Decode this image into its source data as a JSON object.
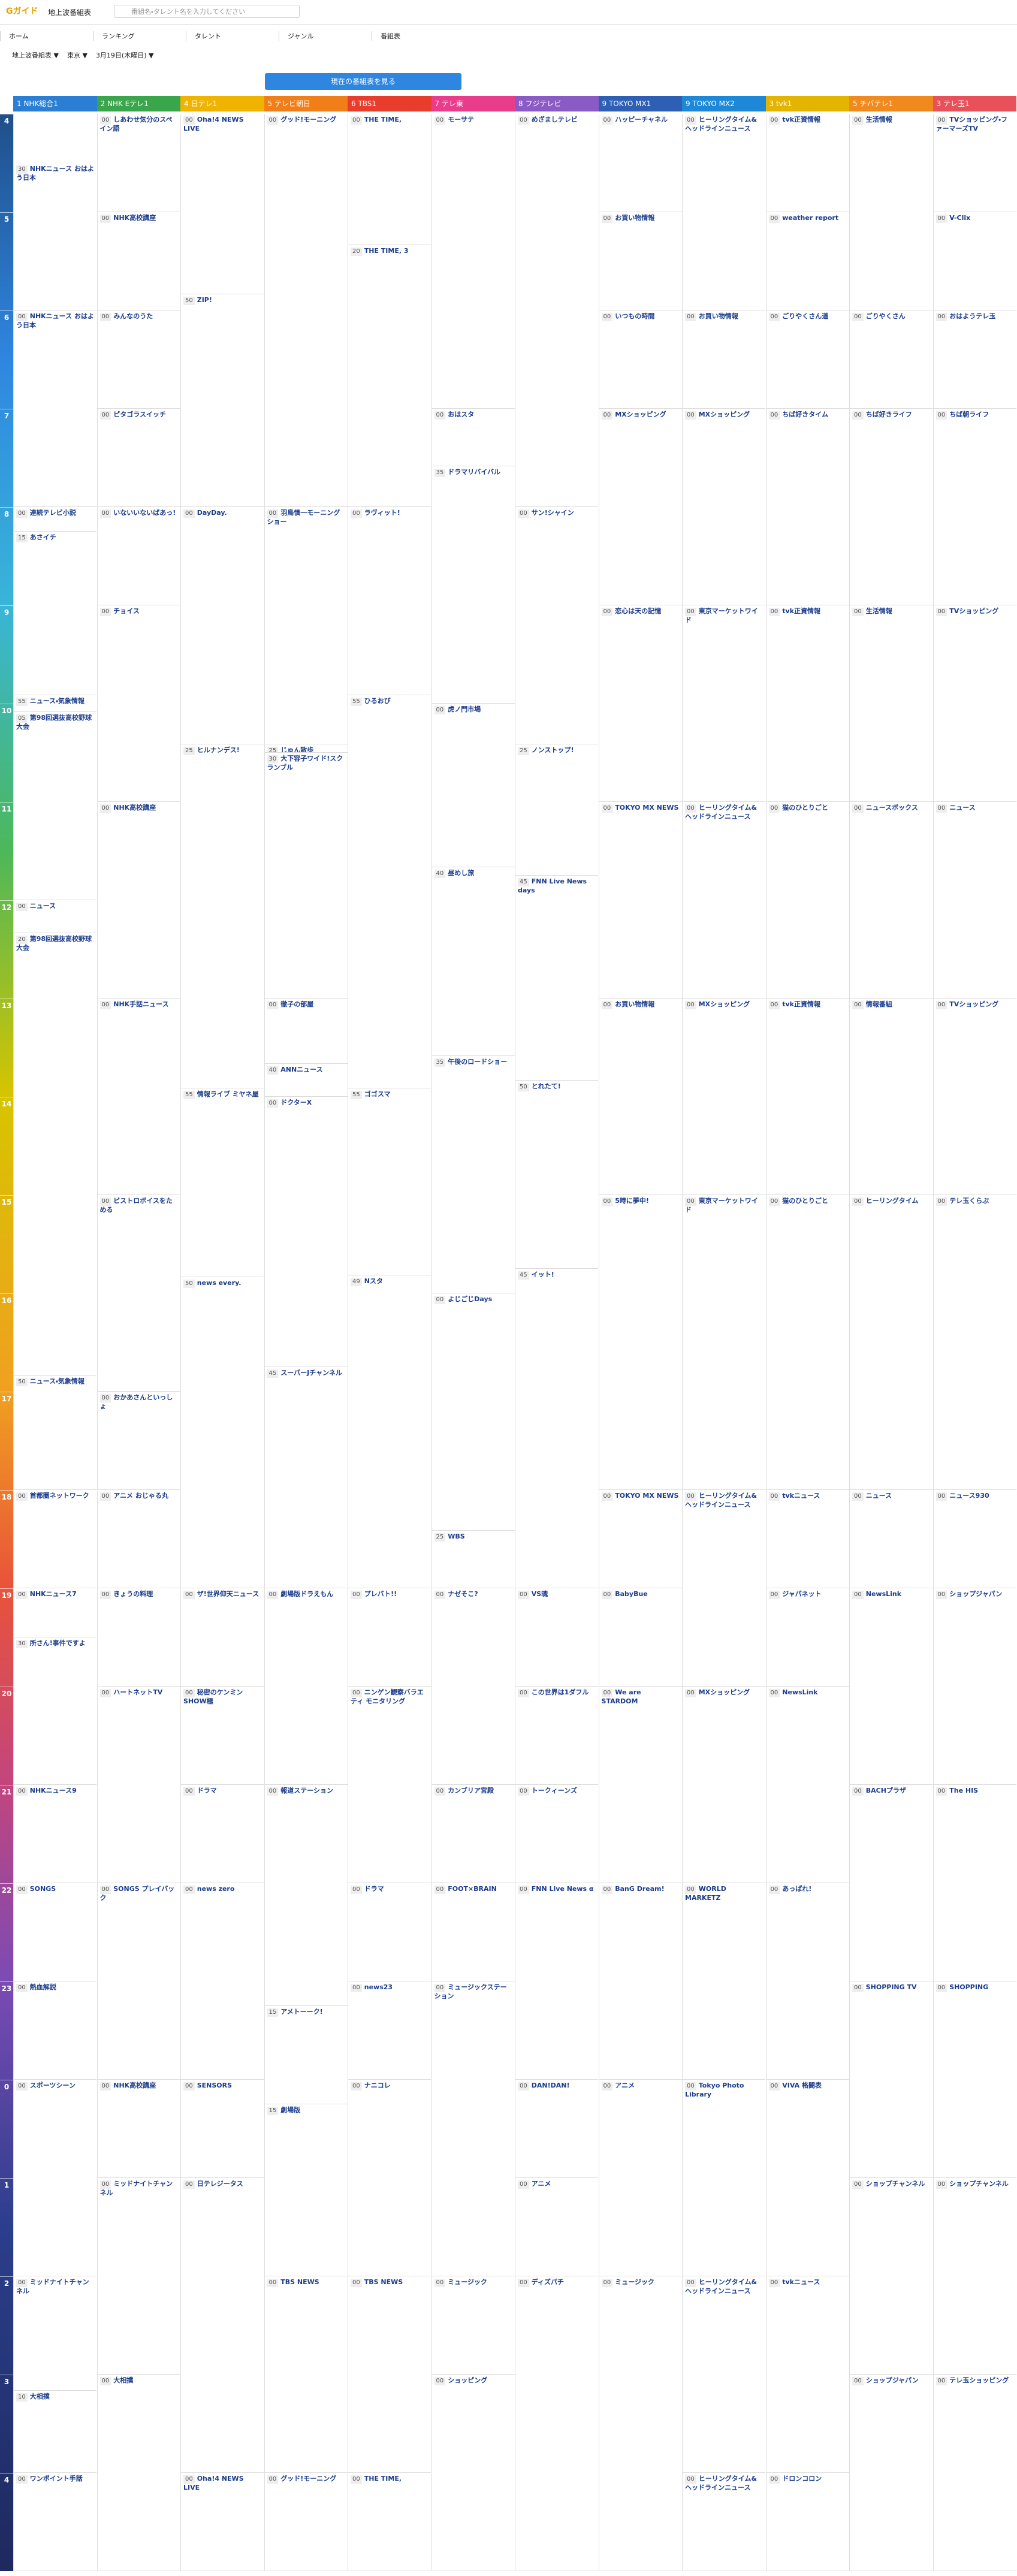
{
  "header": {
    "logo": "Gガイド",
    "site_name": "地上波番組表",
    "search_placeholder": "番組名・タレント名を入力してください"
  },
  "nav": [
    "ホーム",
    "ランキング",
    "タレント",
    "ジャンル",
    "番組表"
  ],
  "selectors": [
    "地上波番組表 ▼",
    "東京 ▼",
    "3月19日(木曜日) ▼"
  ],
  "button": "現在の番組表を見る",
  "hours": [
    4,
    5,
    6,
    7,
    8,
    9,
    10,
    11,
    12,
    13,
    14,
    15,
    16,
    17,
    18,
    19,
    20,
    21,
    22,
    23,
    {
      "value": 24,
      "label": "0"
    },
    {
      "value": 25,
      "label": "1"
    },
    {
      "value": 26,
      "label": "2"
    },
    {
      "value": 27,
      "label": "3"
    },
    {
      "value": 28,
      "label": "4"
    }
  ],
  "channels": [
    {
      "name": "1 NHK総合1",
      "color": "#2a7fd4",
      "programs": [
        {
          "hour": 4,
          "minute": "30",
          "title": "NHKニュース おはよう日本"
        },
        {
          "hour": 6,
          "minute": "00",
          "title": "NHKニュース おはよう日本"
        },
        {
          "hour": 8,
          "minute": "00",
          "title": "連続テレビ小説"
        },
        {
          "hour": 8,
          "minute": "15",
          "title": "あさイチ"
        },
        {
          "hour": 9,
          "minute": "55",
          "title": "ニュース・気象情報"
        },
        {
          "hour": 10,
          "minute": "05",
          "title": "第98回選抜高校野球大会"
        },
        {
          "hour": 12,
          "minute": "00",
          "title": "ニュース"
        },
        {
          "hour": 12,
          "minute": "20",
          "title": "第98回選抜高校野球大会"
        },
        {
          "hour": 16,
          "minute": "50",
          "title": "ニュース・気象情報"
        },
        {
          "hour": 18,
          "minute": "00",
          "title": "首都圏ネットワーク"
        },
        {
          "hour": 19,
          "minute": "00",
          "title": "NHKニュース7"
        },
        {
          "hour": 19,
          "minute": "30",
          "title": "所さん!事件ですよ"
        },
        {
          "hour": 21,
          "minute": "00",
          "title": "NHKニュース9"
        },
        {
          "hour": 22,
          "minute": "00",
          "title": "SONGS"
        },
        {
          "hour": 23,
          "minute": "00",
          "title": "熱血解説"
        },
        {
          "hour": 24,
          "minute": "00",
          "title": "スポーツシーン"
        },
        {
          "hour": 26,
          "minute": "00",
          "title": "ミッドナイトチャンネル"
        },
        {
          "hour": 27,
          "minute": "10",
          "title": "大相撲"
        },
        {
          "hour": 28,
          "minute": "00",
          "title": "ワンポイント手話"
        }
      ]
    },
    {
      "name": "2 NHK Eテレ1",
      "color": "#3aa64b",
      "programs": [
        {
          "hour": 4,
          "minute": "00",
          "title": "しあわせ気分のスペイン語"
        },
        {
          "hour": 5,
          "minute": "00",
          "title": "NHK高校講座"
        },
        {
          "hour": 6,
          "minute": "00",
          "title": "みんなのうた"
        },
        {
          "hour": 7,
          "minute": "00",
          "title": "ピタゴラスイッチ"
        },
        {
          "hour": 8,
          "minute": "00",
          "title": "いないいないばあっ!"
        },
        {
          "hour": 9,
          "minute": "00",
          "title": "チョイス"
        },
        {
          "hour": 11,
          "minute": "00",
          "title": "NHK高校講座"
        },
        {
          "hour": 13,
          "minute": "00",
          "title": "NHK手話ニュース"
        },
        {
          "hour": 15,
          "minute": "00",
          "title": "ビストロボイスをためる"
        },
        {
          "hour": 17,
          "minute": "00",
          "title": "おかあさんといっしょ"
        },
        {
          "hour": 18,
          "minute": "00",
          "title": "アニメ おじゃる丸"
        },
        {
          "hour": 19,
          "minute": "00",
          "title": "きょうの料理"
        },
        {
          "hour": 20,
          "minute": "00",
          "title": "ハートネットTV"
        },
        {
          "hour": 22,
          "minute": "00",
          "title": "SONGS プレイバック"
        },
        {
          "hour": 24,
          "minute": "00",
          "title": "NHK高校講座"
        },
        {
          "hour": 25,
          "minute": "00",
          "title": "ミッドナイトチャンネル"
        },
        {
          "hour": 27,
          "minute": "00",
          "title": "大相撲"
        }
      ]
    },
    {
      "name": "4 日テレ1",
      "color": "#f0b400",
      "programs": [
        {
          "hour": 4,
          "minute": "00",
          "title": "Oha!4 NEWS LIVE"
        },
        {
          "hour": 5,
          "minute": "50",
          "title": "ZIP!"
        },
        {
          "hour": 8,
          "minute": "00",
          "title": "DayDay."
        },
        {
          "hour": 10,
          "minute": "25",
          "title": "ヒルナンデス!"
        },
        {
          "hour": 13,
          "minute": "55",
          "title": "情報ライブ ミヤネ屋"
        },
        {
          "hour": 15,
          "minute": "50",
          "title": "news every."
        },
        {
          "hour": 19,
          "minute": "00",
          "title": "ザ!世界仰天ニュース"
        },
        {
          "hour": 20,
          "minute": "00",
          "title": "秘密のケンミンSHOW極"
        },
        {
          "hour": 21,
          "minute": "00",
          "title": "ドラマ"
        },
        {
          "hour": 22,
          "minute": "00",
          "title": "news zero"
        },
        {
          "hour": 24,
          "minute": "00",
          "title": "SENSORS"
        },
        {
          "hour": 25,
          "minute": "00",
          "title": "日テレジータス"
        },
        {
          "hour": 28,
          "minute": "00",
          "title": "Oha!4 NEWS LIVE"
        }
      ]
    },
    {
      "name": "5 テレビ朝日",
      "color": "#f07f1a",
      "programs": [
        {
          "hour": 4,
          "minute": "00",
          "title": "グッド!モーニング"
        },
        {
          "hour": 8,
          "minute": "00",
          "title": "羽鳥慎一モーニングショー"
        },
        {
          "hour": 10,
          "minute": "25",
          "title": "じゅん散歩"
        },
        {
          "hour": 10,
          "minute": "30",
          "title": "大下容子ワイド!スクランブル"
        },
        {
          "hour": 13,
          "minute": "00",
          "title": "徹子の部屋"
        },
        {
          "hour": 13,
          "minute": "40",
          "title": "ANNニュース"
        },
        {
          "hour": 14,
          "minute": "00",
          "title": "ドクターX"
        },
        {
          "hour": 16,
          "minute": "45",
          "title": "スーパーJチャンネル"
        },
        {
          "hour": 19,
          "minute": "00",
          "title": "劇場版ドラえもん"
        },
        {
          "hour": 21,
          "minute": "00",
          "title": "報道ステーション"
        },
        {
          "hour": 23,
          "minute": "15",
          "title": "アメトーーク!"
        },
        {
          "hour": 24,
          "minute": "15",
          "title": "劇場版"
        },
        {
          "hour": 26,
          "minute": "00",
          "title": "TBS NEWS"
        },
        {
          "hour": 28,
          "minute": "00",
          "title": "グッド!モーニング"
        }
      ]
    },
    {
      "name": "6 TBS1",
      "color": "#e83c2c",
      "programs": [
        {
          "hour": 4,
          "minute": "00",
          "title": "THE TIME,"
        },
        {
          "hour": 5,
          "minute": "20",
          "title": "THE TIME, 3"
        },
        {
          "hour": 8,
          "minute": "00",
          "title": "ラヴィット!"
        },
        {
          "hour": 9,
          "minute": "55",
          "title": "ひるおび"
        },
        {
          "hour": 13,
          "minute": "55",
          "title": "ゴゴスマ"
        },
        {
          "hour": 15,
          "minute": "49",
          "title": "Nスタ"
        },
        {
          "hour": 19,
          "minute": "00",
          "title": "プレバト!!"
        },
        {
          "hour": 20,
          "minute": "00",
          "title": "ニンゲン観察バラエティ モニタリング"
        },
        {
          "hour": 22,
          "minute": "00",
          "title": "ドラマ"
        },
        {
          "hour": 23,
          "minute": "00",
          "title": "news23"
        },
        {
          "hour": 24,
          "minute": "00",
          "title": "ナニコレ"
        },
        {
          "hour": 26,
          "minute": "00",
          "title": "TBS NEWS"
        },
        {
          "hour": 28,
          "minute": "00",
          "title": "THE TIME,"
        }
      ]
    },
    {
      "name": "7 テレ東",
      "color": "#e93d8c",
      "programs": [
        {
          "hour": 4,
          "minute": "00",
          "title": "モーサテ"
        },
        {
          "hour": 7,
          "minute": "00",
          "title": "おはスタ"
        },
        {
          "hour": 7,
          "minute": "35",
          "title": "ドラマリバイバル"
        },
        {
          "hour": 10,
          "minute": "00",
          "title": "虎ノ門市場"
        },
        {
          "hour": 11,
          "minute": "40",
          "title": "昼めし旅"
        },
        {
          "hour": 13,
          "minute": "35",
          "title": "午後のロードショー"
        },
        {
          "hour": 16,
          "minute": "00",
          "title": "よじごじDays"
        },
        {
          "hour": 18,
          "minute": "25",
          "title": "WBS"
        },
        {
          "hour": 19,
          "minute": "00",
          "title": "ナゼそこ?"
        },
        {
          "hour": 21,
          "minute": "00",
          "title": "カンブリア宮殿"
        },
        {
          "hour": 22,
          "minute": "00",
          "title": "FOOT×BRAIN"
        },
        {
          "hour": 23,
          "minute": "00",
          "title": "ミュージックステーション"
        },
        {
          "hour": 26,
          "minute": "00",
          "title": "ミュージック"
        },
        {
          "hour": 27,
          "minute": "00",
          "title": "ショッピング"
        }
      ]
    },
    {
      "name": "8 フジテレビ",
      "color": "#8a5bc4",
      "programs": [
        {
          "hour": 4,
          "minute": "00",
          "title": "めざましテレビ"
        },
        {
          "hour": 8,
          "minute": "00",
          "title": "サン!シャイン"
        },
        {
          "hour": 10,
          "minute": "25",
          "title": "ノンストップ!"
        },
        {
          "hour": 11,
          "minute": "45",
          "title": "FNN Live News days"
        },
        {
          "hour": 13,
          "minute": "50",
          "title": "とれたて!"
        },
        {
          "hour": 15,
          "minute": "45",
          "title": "イット!"
        },
        {
          "hour": 19,
          "minute": "00",
          "title": "VS魂"
        },
        {
          "hour": 20,
          "minute": "00",
          "title": "この世界は1ダフル"
        },
        {
          "hour": 21,
          "minute": "00",
          "title": "トークィーンズ"
        },
        {
          "hour": 22,
          "minute": "00",
          "title": "FNN Live News α"
        },
        {
          "hour": 24,
          "minute": "00",
          "title": "DAN!DAN!"
        },
        {
          "hour": 25,
          "minute": "00",
          "title": "アニメ"
        },
        {
          "hour": 26,
          "minute": "00",
          "title": "ディズパチ"
        }
      ]
    },
    {
      "name": "9 TOKYO MX1",
      "color": "#2d5fb4",
      "programs": [
        {
          "hour": 4,
          "minute": "00",
          "title": "ハッピーチャネル"
        },
        {
          "hour": 5,
          "minute": "00",
          "title": "お買い物情報"
        },
        {
          "hour": 6,
          "minute": "00",
          "title": "いつもの時間"
        },
        {
          "hour": 7,
          "minute": "00",
          "title": "MXショッピング"
        },
        {
          "hour": 9,
          "minute": "00",
          "title": "恋心は天の記憶"
        },
        {
          "hour": 11,
          "minute": "00",
          "title": "TOKYO MX NEWS"
        },
        {
          "hour": 13,
          "minute": "00",
          "title": "お買い物情報"
        },
        {
          "hour": 15,
          "minute": "00",
          "title": "5時に夢中!"
        },
        {
          "hour": 18,
          "minute": "00",
          "title": "TOKYO MX NEWS"
        },
        {
          "hour": 19,
          "minute": "00",
          "title": "BabyBue"
        },
        {
          "hour": 20,
          "minute": "00",
          "title": "We are STARDOM"
        },
        {
          "hour": 22,
          "minute": "00",
          "title": "BanG Dream!"
        },
        {
          "hour": 24,
          "minute": "00",
          "title": "アニメ"
        },
        {
          "hour": 26,
          "minute": "00",
          "title": "ミュージック"
        }
      ]
    },
    {
      "name": "9 TOKYO MX2",
      "color": "#1e88d8",
      "programs": [
        {
          "hour": 4,
          "minute": "00",
          "title": "ヒーリングタイム&ヘッドラインニュース"
        },
        {
          "hour": 6,
          "minute": "00",
          "title": "お買い物情報"
        },
        {
          "hour": 7,
          "minute": "00",
          "title": "MXショッピング"
        },
        {
          "hour": 9,
          "minute": "00",
          "title": "東京マーケットワイド"
        },
        {
          "hour": 11,
          "minute": "00",
          "title": "ヒーリングタイム&ヘッドラインニュース"
        },
        {
          "hour": 13,
          "minute": "00",
          "title": "MXショッピング"
        },
        {
          "hour": 15,
          "minute": "00",
          "title": "東京マーケットワイド"
        },
        {
          "hour": 18,
          "minute": "00",
          "title": "ヒーリングタイム&ヘッドラインニュース"
        },
        {
          "hour": 20,
          "minute": "00",
          "title": "MXショッピング"
        },
        {
          "hour": 22,
          "minute": "00",
          "title": "WORLD MARKETZ"
        },
        {
          "hour": 24,
          "minute": "00",
          "title": "Tokyo Photo Library"
        },
        {
          "hour": 26,
          "minute": "00",
          "title": "ヒーリングタイム&ヘッドラインニュース"
        },
        {
          "hour": 28,
          "minute": "00",
          "title": "ヒーリングタイム&ヘッドラインニュース"
        }
      ]
    },
    {
      "name": "3 tvk1",
      "color": "#e3b400",
      "programs": [
        {
          "hour": 4,
          "minute": "00",
          "title": "tvk正資情報"
        },
        {
          "hour": 5,
          "minute": "00",
          "title": "weather report"
        },
        {
          "hour": 6,
          "minute": "00",
          "title": "ごりやくさん道"
        },
        {
          "hour": 7,
          "minute": "00",
          "title": "ちば好きタイム"
        },
        {
          "hour": 9,
          "minute": "00",
          "title": "tvk正資情報"
        },
        {
          "hour": 11,
          "minute": "00",
          "title": "猫のひとりごと"
        },
        {
          "hour": 13,
          "minute": "00",
          "title": "tvk正資情報"
        },
        {
          "hour": 15,
          "minute": "00",
          "title": "猫のひとりごと"
        },
        {
          "hour": 18,
          "minute": "00",
          "title": "tvkニュース"
        },
        {
          "hour": 19,
          "minute": "00",
          "title": "ジャパネット"
        },
        {
          "hour": 20,
          "minute": "00",
          "title": "NewsLink"
        },
        {
          "hour": 22,
          "minute": "00",
          "title": "あっぱれ!"
        },
        {
          "hour": 24,
          "minute": "00",
          "title": "VIVA 格闘表"
        },
        {
          "hour": 26,
          "minute": "00",
          "title": "tvkニュース"
        },
        {
          "hour": 28,
          "minute": "00",
          "title": "ドロンコロン"
        }
      ]
    },
    {
      "name": "5 チバテレ1",
      "color": "#f08a1e",
      "programs": [
        {
          "hour": 4,
          "minute": "00",
          "title": "生活情報"
        },
        {
          "hour": 6,
          "minute": "00",
          "title": "ごりやくさん"
        },
        {
          "hour": 7,
          "minute": "00",
          "title": "ちば好きライフ"
        },
        {
          "hour": 9,
          "minute": "00",
          "title": "生活情報"
        },
        {
          "hour": 11,
          "minute": "00",
          "title": "ニュースボックス"
        },
        {
          "hour": 13,
          "minute": "00",
          "title": "情報番組"
        },
        {
          "hour": 15,
          "minute": "00",
          "title": "ヒーリングタイム"
        },
        {
          "hour": 18,
          "minute": "00",
          "title": "ニュース"
        },
        {
          "hour": 19,
          "minute": "00",
          "title": "NewsLink"
        },
        {
          "hour": 21,
          "minute": "00",
          "title": "BACHプラザ"
        },
        {
          "hour": 23,
          "minute": "00",
          "title": "SHOPPING TV"
        },
        {
          "hour": 25,
          "minute": "00",
          "title": "ショップチャンネル"
        },
        {
          "hour": 27,
          "minute": "00",
          "title": "ショップジャパン"
        }
      ]
    },
    {
      "name": "3 テレ玉1",
      "color": "#e8505a",
      "programs": [
        {
          "hour": 4,
          "minute": "00",
          "title": "TVショッピング・ファーマーズTV"
        },
        {
          "hour": 5,
          "minute": "00",
          "title": "V-Clix"
        },
        {
          "hour": 6,
          "minute": "00",
          "title": "おはようテレ玉"
        },
        {
          "hour": 7,
          "minute": "00",
          "title": "ちば朝ライフ"
        },
        {
          "hour": 9,
          "minute": "00",
          "title": "TVショッピング"
        },
        {
          "hour": 11,
          "minute": "00",
          "title": "ニュース"
        },
        {
          "hour": 13,
          "minute": "00",
          "title": "TVショッピング"
        },
        {
          "hour": 15,
          "minute": "00",
          "title": "テレ玉くらぶ"
        },
        {
          "hour": 18,
          "minute": "00",
          "title": "ニュース930"
        },
        {
          "hour": 19,
          "minute": "00",
          "title": "ショップジャパン"
        },
        {
          "hour": 21,
          "minute": "00",
          "title": "The HIS"
        },
        {
          "hour": 23,
          "minute": "00",
          "title": "SHOPPING"
        },
        {
          "hour": 25,
          "minute": "00",
          "title": "ショップチャンネル"
        },
        {
          "hour": 27,
          "minute": "00",
          "title": "テレ玉ショッピング"
        }
      ]
    }
  ]
}
